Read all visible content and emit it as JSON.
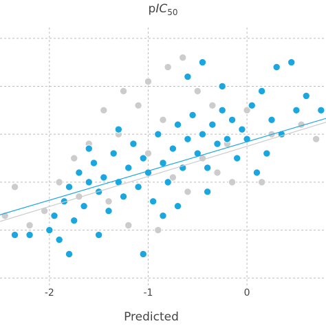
{
  "chart_data": {
    "type": "scatter",
    "title_parts": [
      "p",
      "IC",
      "50"
    ],
    "xlabel": "Predicted",
    "xlim": [
      -2.5,
      0.8
    ],
    "ylim": [
      3,
      9.8
    ],
    "xticks": [
      -2,
      -1,
      0
    ],
    "yticks": [
      4,
      5,
      6,
      7,
      8,
      9
    ],
    "grid": true,
    "series": [
      {
        "color": "#cccccc",
        "x": [
          -2.35,
          -2.2,
          -2.05,
          -1.9,
          -1.75,
          -1.6,
          -1.45,
          -1.3,
          -1.2,
          -1.1,
          -1.0,
          -0.85,
          -0.8,
          -0.65,
          -0.5,
          -0.35,
          -0.2,
          0.0,
          0.15,
          -0.9,
          -1.4,
          -0.6,
          -0.3,
          -1.7,
          -1.0,
          -0.45,
          -0.15,
          0.25,
          0.55,
          0.7,
          -2.45,
          -1.25,
          -0.75
        ],
        "values": [
          5.9,
          5.1,
          5.4,
          6.0,
          6.5,
          6.8,
          7.5,
          7.0,
          5.1,
          7.6,
          8.1,
          7.3,
          8.4,
          8.6,
          7.9,
          7.6,
          6.8,
          7.5,
          6.0,
          5.0,
          5.6,
          5.8,
          6.2,
          5.7,
          6.6,
          6.5,
          6.0,
          7.0,
          7.2,
          6.9,
          5.3,
          7.9,
          6.1
        ]
      },
      {
        "color": "#1aa7e0",
        "x": [
          -2.35,
          -2.2,
          -1.95,
          -1.9,
          -1.85,
          -1.8,
          -1.75,
          -1.7,
          -1.65,
          -1.6,
          -1.55,
          -1.5,
          -1.45,
          -1.4,
          -1.35,
          -1.3,
          -1.25,
          -1.2,
          -1.15,
          -1.1,
          -1.05,
          -1.0,
          -0.95,
          -0.9,
          -0.85,
          -0.8,
          -0.75,
          -0.7,
          -0.65,
          -0.6,
          -0.55,
          -0.5,
          -0.45,
          -0.4,
          -0.35,
          -0.3,
          -0.25,
          -0.2,
          -0.15,
          -0.1,
          -0.05,
          0.0,
          0.05,
          0.1,
          0.15,
          0.25,
          0.3,
          0.35,
          0.45,
          0.5,
          0.6,
          0.75,
          -0.6,
          -0.45,
          -1.05,
          -1.5,
          -1.8,
          -2.0,
          -1.3,
          -0.85,
          -0.25,
          -0.7,
          -1.6,
          -0.4,
          0.2
        ],
        "values": [
          4.9,
          4.9,
          5.3,
          4.8,
          5.6,
          5.9,
          5.2,
          6.2,
          5.5,
          6.0,
          6.4,
          5.8,
          6.1,
          5.4,
          6.6,
          6.0,
          5.7,
          6.3,
          6.8,
          5.9,
          6.5,
          6.2,
          5.6,
          7.0,
          6.4,
          6.0,
          6.7,
          7.2,
          6.3,
          6.9,
          7.4,
          6.6,
          7.0,
          6.3,
          7.2,
          6.8,
          7.5,
          6.9,
          7.3,
          6.5,
          7.1,
          6.9,
          7.6,
          6.2,
          7.9,
          7.3,
          8.4,
          7.0,
          8.5,
          7.5,
          7.8,
          7.5,
          8.2,
          8.5,
          4.5,
          4.9,
          4.5,
          5.0,
          7.1,
          5.3,
          8.0,
          5.5,
          6.7,
          5.8,
          6.6
        ]
      }
    ],
    "fit_lines": [
      {
        "color": "#cccccc",
        "x": [
          -2.5,
          0.8
        ],
        "y": [
          5.18,
          7.25
        ]
      },
      {
        "color": "#1aa7e0",
        "x": [
          -2.5,
          0.8
        ],
        "y": [
          5.32,
          7.33
        ]
      }
    ]
  }
}
